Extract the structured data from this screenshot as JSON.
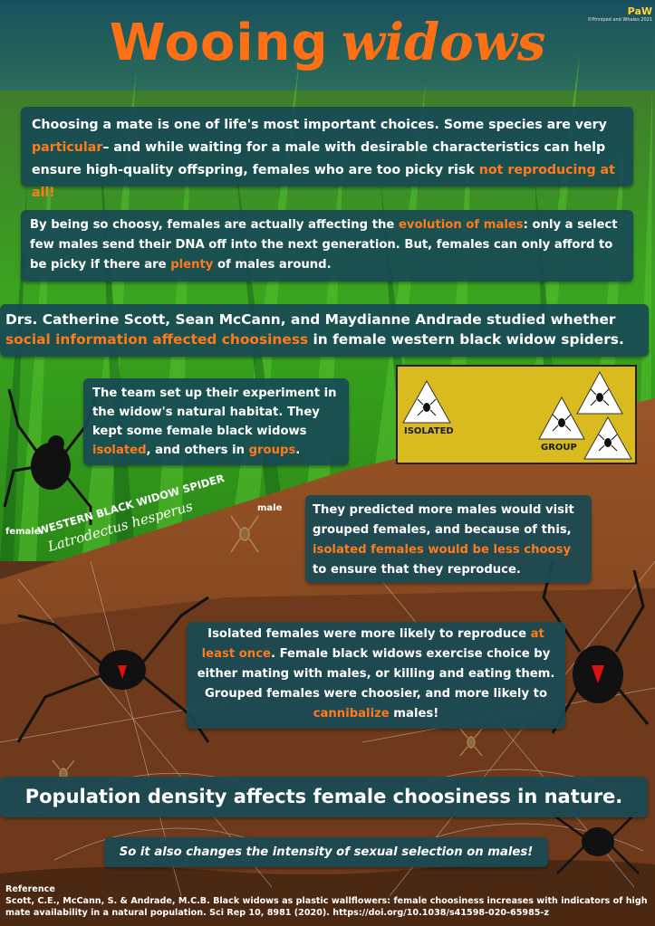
{
  "title": {
    "word1": "Wooing",
    "word2": "widows"
  },
  "credit": {
    "logo": "PaW",
    "text": "©Pinniped and Whales 2021"
  },
  "intro": {
    "t1": "Choosing a mate is one of life's most important choices. Some species are very ",
    "h1": "particular",
    "t2": "– and while waiting for a male with desirable characteristics can help ensure high-quality offspring, females who are too picky risk ",
    "h2": "not reproducing at all!"
  },
  "evolution": {
    "t1": "By being so choosy, females are actually affecting the ",
    "h1": "evolution of males",
    "t2": ": only a select few males send their DNA off into the next generation. But, females can only afford to be picky if there are ",
    "h2": "plenty",
    "t3": " of males around."
  },
  "study": {
    "t1": "Drs. Catherine Scott, Sean McCann, and Maydianne Andrade studied whether ",
    "h1": "social information affected choosiness",
    "t2": " in female western black widow spiders."
  },
  "experiment": {
    "t1": "The team set up their experiment in the widow's natural habitat. They kept some female black widows ",
    "h1": "isolated",
    "t2": ", and others in ",
    "h2": "groups",
    "t3": "."
  },
  "diagram": {
    "isolated": "ISOLATED",
    "group": "GROUP"
  },
  "labels": {
    "female": "female",
    "male": "male",
    "common_name": "WESTERN BLACK WIDOW SPIDER",
    "latin_name": "Latrodectus hesperus"
  },
  "prediction": {
    "t1": "They predicted more males would visit grouped females, and because of this, ",
    "h1": "isolated females would be less choosy",
    "t2": " to ensure that they reproduce."
  },
  "results": {
    "t1": "Isolated females were more likely to reproduce ",
    "h1": "at least once",
    "t2": ". Female black widows exercise choice by either mating with males, or killing and eating them. Grouped females were choosier, and more likely to ",
    "h2": "cannibalize",
    "t3": " males!"
  },
  "conclusion": "Population density affects female choosiness in nature.",
  "subconclusion": "So it also changes the intensity of sexual selection on males!",
  "reference": {
    "heading": "Reference",
    "text": "Scott, C.E., McCann, S. & Andrade, M.C.B. Black widows as plastic wallflowers: female choosiness increases with indicators of high mate availability in a natural population. Sci Rep 10, 8981 (2020). https://doi.org/10.1038/s41598-020-65985-z"
  },
  "colors": {
    "highlight": "#ff7a1a",
    "title": "#ff6f14",
    "box": "#184a54",
    "grass": "#2f9b1e",
    "soil": "#8b4a22",
    "diagram": "#d9bb1f"
  }
}
